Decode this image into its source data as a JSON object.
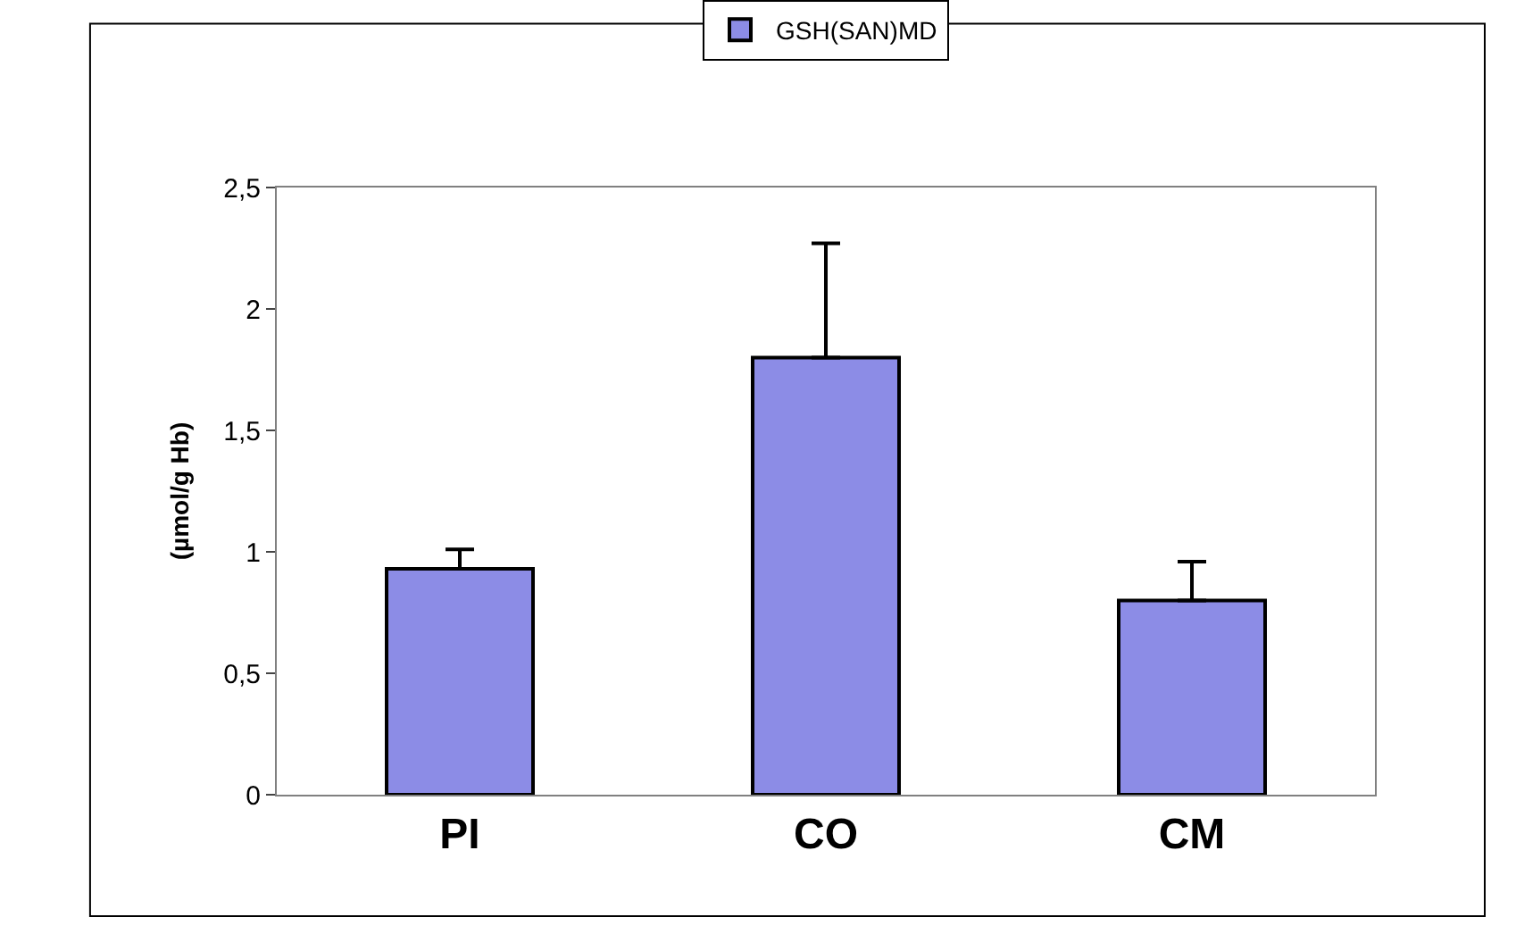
{
  "chart_data": {
    "type": "bar",
    "ylabel": "(µmol/g Hb)",
    "categories": [
      "PI",
      "CO",
      "CM"
    ],
    "series": [
      {
        "name": "GSH(SAN)MD",
        "color": "#8c8ce6",
        "values": [
          0.93,
          1.8,
          0.8
        ],
        "errors": [
          [
            0.93,
            1.01
          ],
          [
            1.8,
            2.27
          ],
          [
            0.8,
            0.96
          ]
        ]
      }
    ],
    "ylim": [
      0,
      2.5
    ],
    "yticks": [
      0,
      "0,5",
      1,
      "1,5",
      2,
      "2,5"
    ],
    "legend": "top"
  }
}
